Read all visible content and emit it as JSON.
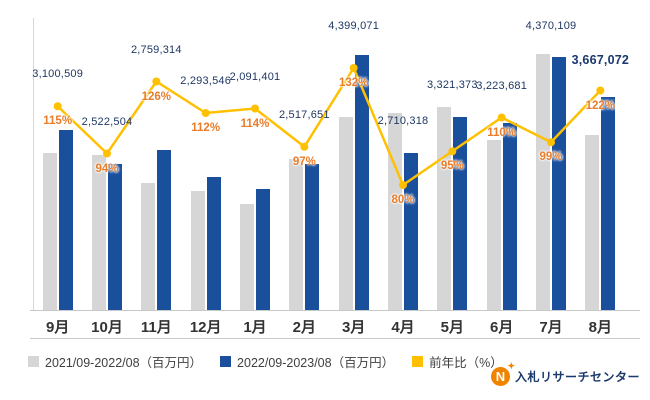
{
  "chart_data": {
    "type": "combo",
    "categories": [
      "9月",
      "10月",
      "11月",
      "12月",
      "1月",
      "2月",
      "3月",
      "4月",
      "5月",
      "6月",
      "7月",
      "8月"
    ],
    "series": [
      {
        "name": "2021/09-2022/08（百万円）",
        "chart_type": "bar",
        "color": "#d6d6d6",
        "estimated": true,
        "values": [
          2700000,
          2680000,
          2190000,
          2050000,
          1830000,
          2600000,
          3330000,
          3390000,
          3500000,
          2930000,
          4410000,
          3010000
        ]
      },
      {
        "name": "2022/09-2023/08（百万円）",
        "chart_type": "bar",
        "color": "#1a4f9c",
        "values": [
          3100509,
          2522504,
          2759314,
          2293546,
          2091401,
          2517651,
          4399071,
          2710318,
          3321373,
          3223681,
          4370109,
          3667072
        ],
        "labels": [
          "3,100,509",
          "2,522,504",
          "2,759,314",
          "2,293,546",
          "2,091,401",
          "2,517,651",
          "4,399,071",
          "2,710,318",
          "3,321,373",
          "3,223,681",
          "4,370,109",
          "3,667,072"
        ]
      },
      {
        "name": "前年比（%）",
        "chart_type": "line",
        "color": "#ffc000",
        "label_color": "#e87d2a",
        "values": [
          115,
          94,
          126,
          112,
          114,
          97,
          132,
          80,
          95,
          110,
          99,
          122
        ],
        "labels": [
          "115%",
          "94%",
          "126%",
          "112%",
          "114%",
          "97%",
          "132%",
          "80%",
          "95%",
          "110%",
          "99%",
          "122%"
        ]
      }
    ],
    "value_axis": {
      "min": 0,
      "max": 5000000,
      "visible": false
    },
    "percent_axis": {
      "visible": false
    },
    "grid": false,
    "legend_position": "bottom",
    "emphasize_last_value_label": true
  },
  "legend": {
    "items": [
      {
        "label": "2021/09-2022/08（百万円）",
        "color": "#d6d6d6"
      },
      {
        "label": "2022/09-2023/08（百万円）",
        "color": "#1a4f9c"
      },
      {
        "label": "前年比（%）",
        "color": "#ffc000"
      }
    ]
  },
  "logo": {
    "mark": "N",
    "text": "入札リサーチセンター"
  }
}
